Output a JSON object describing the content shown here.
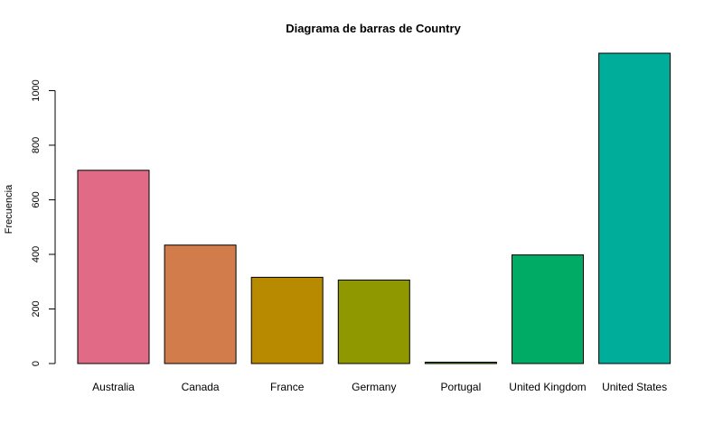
{
  "chart_data": {
    "type": "bar",
    "title": "Diagrama de barras de Country",
    "xlabel": "",
    "ylabel": "Frecuencia",
    "categories": [
      "Australia",
      "Canada",
      "France",
      "Germany",
      "Portugal",
      "United Kingdom",
      "United States"
    ],
    "values": [
      708,
      434,
      316,
      306,
      5,
      398,
      1137
    ],
    "colors": [
      "#E16A86",
      "#D27C4C",
      "#B88A00",
      "#909800",
      "#50A315",
      "#00AB66",
      "#00AD9A"
    ],
    "yticks": [
      0,
      200,
      400,
      600,
      800,
      1000
    ],
    "ylim": [
      0,
      1137
    ],
    "grid": false,
    "legend": "none"
  }
}
